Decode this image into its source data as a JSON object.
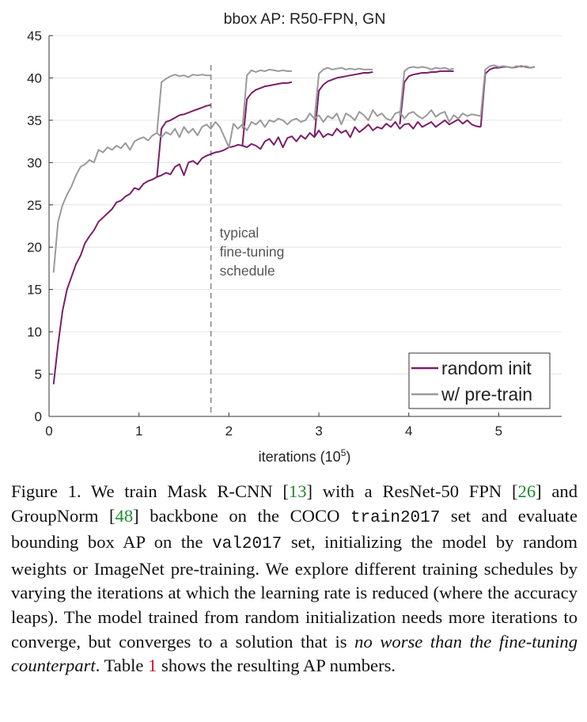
{
  "figure": {
    "caption": {
      "figure_label": "Figure 1.",
      "t1": " We train Mask R-CNN [",
      "ref13": "13",
      "t2": "] with a ResNet-50 FPN [",
      "ref26": "26",
      "t3": "] and GroupNorm [",
      "ref48": "48",
      "t4": "] backbone on the COCO ",
      "code_train": "train2017",
      "t5": " set and evaluate bounding box AP on the ",
      "code_val": "val2017",
      "t6": " set, initializing the model by random weights or ImageNet pre-training.  We explore different training schedules by varying the iterations at which the learning rate is reduced (where the accuracy leaps). The model trained from random initialization needs more iterations to converge, but converges to a solution that is ",
      "emph": "no worse than the fine-tuning counterpart",
      "t7": ". Table ",
      "table_ref": "1",
      "t8": " shows the resulting AP numbers."
    }
  },
  "chart_data": {
    "type": "line",
    "title": "bbox AP: R50-FPN, GN",
    "xlabel": "iterations (10",
    "xlabel_sup": "5",
    "xlabel_end": ")",
    "xlim": [
      0,
      5.7
    ],
    "ylim": [
      0,
      45
    ],
    "xticks": [
      0,
      1,
      2,
      3,
      4,
      5
    ],
    "yticks": [
      0,
      5,
      10,
      15,
      20,
      25,
      30,
      35,
      40,
      45
    ],
    "grid": true,
    "legend_position": "bottom-right",
    "colors": {
      "random_init": "#7b1f6a",
      "pretrain": "#9a9a9a",
      "annotation": "#8a8a8a"
    },
    "annotation": {
      "x": 1.8,
      "lines": [
        "typical",
        "fine-tuning",
        "schedule"
      ]
    },
    "series": [
      {
        "name": "random init",
        "key": "random_init",
        "segments": [
          {
            "x": [
              0.05,
              0.1,
              0.15,
              0.2,
              0.25,
              0.3,
              0.35,
              0.4,
              0.45,
              0.5,
              0.55,
              0.6,
              0.65,
              0.7,
              0.75,
              0.8,
              0.85,
              0.9,
              0.95,
              1.0,
              1.05,
              1.1,
              1.15,
              1.2,
              1.25,
              1.3,
              1.35,
              1.4,
              1.45,
              1.5,
              1.55,
              1.6,
              1.65,
              1.7,
              1.75,
              1.8,
              1.85,
              1.9,
              1.95,
              2.0,
              2.05,
              2.1,
              2.15,
              2.2,
              2.25,
              2.3,
              2.35,
              2.4,
              2.45,
              2.5,
              2.55,
              2.6,
              2.65,
              2.7,
              2.75,
              2.8,
              2.85,
              2.9,
              2.95,
              3.0,
              3.05,
              3.1,
              3.15,
              3.2,
              3.25,
              3.3,
              3.35,
              3.4,
              3.45,
              3.5,
              3.55,
              3.6,
              3.65,
              3.7,
              3.75,
              3.8,
              3.85,
              3.9,
              3.95,
              4.0,
              4.05,
              4.1,
              4.15,
              4.2,
              4.25,
              4.3,
              4.35,
              4.4,
              4.45,
              4.5,
              4.55,
              4.6,
              4.65,
              4.7,
              4.75,
              4.8
            ],
            "y": [
              3.8,
              8.5,
              12.5,
              15.0,
              16.5,
              18.0,
              19.0,
              20.5,
              21.3,
              22.0,
              23.0,
              23.5,
              24.0,
              24.5,
              25.3,
              25.5,
              26.0,
              26.3,
              27.0,
              26.8,
              27.5,
              27.8,
              28.0,
              28.3,
              28.5,
              28.8,
              28.6,
              29.5,
              29.8,
              28.5,
              30.0,
              30.2,
              29.8,
              30.5,
              30.8,
              31.0,
              31.2,
              31.3,
              31.5,
              31.8,
              31.9,
              32.1,
              32.0,
              31.8,
              32.2,
              32.0,
              31.6,
              32.5,
              32.8,
              32.1,
              33.0,
              31.8,
              32.9,
              33.1,
              32.5,
              33.2,
              32.8,
              33.5,
              33.0,
              33.8,
              33.0,
              33.4,
              33.2,
              34.0,
              33.5,
              33.8,
              33.0,
              34.2,
              33.6,
              34.0,
              34.5,
              33.8,
              34.2,
              34.0,
              34.6,
              34.2,
              34.8,
              34.0,
              34.5,
              34.6,
              34.0,
              34.8,
              34.2,
              34.5,
              34.8,
              34.2,
              34.6,
              35.0,
              34.5,
              34.8,
              35.1,
              34.6,
              35.0,
              34.5,
              34.3,
              34.2
            ]
          },
          {
            "x": [
              1.2,
              1.25,
              1.3,
              1.35,
              1.4,
              1.45,
              1.5,
              1.55,
              1.6,
              1.65,
              1.7,
              1.75,
              1.8
            ],
            "y": [
              28.3,
              34.0,
              34.8,
              35.0,
              35.3,
              35.6,
              35.7,
              35.9,
              36.1,
              36.3,
              36.5,
              36.7,
              36.8
            ]
          },
          {
            "x": [
              2.15,
              2.2,
              2.25,
              2.3,
              2.35,
              2.4,
              2.45,
              2.5,
              2.55,
              2.6,
              2.65,
              2.7
            ],
            "y": [
              32.0,
              37.5,
              38.2,
              38.6,
              38.8,
              39.0,
              39.1,
              39.2,
              39.3,
              39.4,
              39.4,
              39.5
            ]
          },
          {
            "x": [
              2.95,
              3.0,
              3.05,
              3.1,
              3.15,
              3.2,
              3.25,
              3.3,
              3.35,
              3.4,
              3.45,
              3.5,
              3.55,
              3.6
            ],
            "y": [
              33.0,
              38.5,
              39.2,
              39.6,
              39.8,
              40.0,
              40.1,
              40.2,
              40.3,
              40.4,
              40.5,
              40.6,
              40.6,
              40.7
            ]
          },
          {
            "x": [
              3.9,
              3.95,
              4.0,
              4.05,
              4.1,
              4.15,
              4.2,
              4.25,
              4.3,
              4.35,
              4.4,
              4.45,
              4.5
            ],
            "y": [
              34.5,
              39.5,
              40.2,
              40.4,
              40.5,
              40.6,
              40.6,
              40.7,
              40.7,
              40.8,
              40.8,
              40.8,
              40.8
            ]
          },
          {
            "x": [
              4.8,
              4.85,
              4.9,
              4.95,
              5.0,
              5.05,
              5.1,
              5.15,
              5.2,
              5.25,
              5.3,
              5.35,
              5.4
            ],
            "y": [
              34.2,
              40.5,
              41.0,
              41.2,
              41.2,
              41.3,
              41.3,
              41.2,
              41.3,
              41.4,
              41.3,
              41.2,
              41.3
            ]
          }
        ]
      },
      {
        "name": "w/ pre-train",
        "key": "pretrain",
        "segments": [
          {
            "x": [
              0.05,
              0.1,
              0.15,
              0.2,
              0.25,
              0.3,
              0.35,
              0.4,
              0.45,
              0.5,
              0.55,
              0.6,
              0.65,
              0.7,
              0.75,
              0.8,
              0.85,
              0.9,
              0.95,
              1.0,
              1.05,
              1.1,
              1.15,
              1.2,
              1.25,
              1.3,
              1.35,
              1.4,
              1.45,
              1.5,
              1.55,
              1.6,
              1.65,
              1.7,
              1.75,
              1.8,
              1.85,
              1.9,
              1.95,
              2.0,
              2.05,
              2.1,
              2.15,
              2.2,
              2.25,
              2.3,
              2.35,
              2.4,
              2.45,
              2.5,
              2.55,
              2.6,
              2.65,
              2.7,
              2.75,
              2.8,
              2.85,
              2.9,
              2.95,
              3.0,
              3.05,
              3.1,
              3.15,
              3.2,
              3.25,
              3.3,
              3.35,
              3.4,
              3.45,
              3.5,
              3.55,
              3.6,
              3.65,
              3.7,
              3.75,
              3.8,
              3.85,
              3.9,
              3.95,
              4.0,
              4.05,
              4.1,
              4.15,
              4.2,
              4.25,
              4.3,
              4.35,
              4.4,
              4.45,
              4.5,
              4.55,
              4.6,
              4.65,
              4.7,
              4.75,
              4.8
            ],
            "y": [
              17.0,
              23.0,
              25.0,
              26.2,
              27.2,
              28.5,
              29.5,
              29.8,
              30.3,
              30.0,
              31.5,
              31.2,
              31.8,
              31.5,
              32.0,
              31.7,
              32.3,
              31.5,
              32.5,
              32.8,
              33.0,
              32.6,
              33.2,
              33.5,
              33.0,
              33.6,
              33.3,
              34.0,
              33.0,
              34.2,
              33.5,
              34.0,
              33.2,
              34.2,
              34.5,
              34.0,
              34.8,
              34.2,
              33.0,
              31.8,
              34.6,
              34.0,
              34.5,
              33.8,
              34.8,
              34.5,
              35.0,
              34.2,
              35.0,
              34.8,
              35.2,
              35.0,
              34.5,
              35.0,
              35.2,
              34.8,
              35.0,
              35.8,
              35.2,
              35.6,
              34.8,
              35.5,
              35.2,
              35.8,
              34.5,
              35.8,
              35.5,
              35.0,
              36.0,
              35.6,
              35.0,
              36.2,
              35.5,
              35.8,
              35.2,
              35.0,
              35.8,
              36.0,
              35.2,
              35.8,
              36.0,
              35.5,
              35.2,
              35.6,
              36.2,
              35.4,
              35.8,
              36.0,
              34.8,
              35.6,
              35.2,
              35.8,
              35.5,
              35.7,
              35.6,
              35.5
            ]
          },
          {
            "x": [
              1.2,
              1.25,
              1.3,
              1.35,
              1.4,
              1.45,
              1.5,
              1.55,
              1.6,
              1.65,
              1.7,
              1.75,
              1.8
            ],
            "y": [
              33.5,
              39.5,
              39.9,
              40.2,
              40.4,
              40.2,
              40.3,
              40.1,
              40.4,
              40.3,
              40.4,
              40.3,
              40.3
            ]
          },
          {
            "x": [
              2.15,
              2.2,
              2.25,
              2.3,
              2.35,
              2.4,
              2.45,
              2.5,
              2.55,
              2.6,
              2.65,
              2.7
            ],
            "y": [
              34.0,
              40.3,
              40.9,
              40.7,
              40.9,
              40.8,
              41.0,
              40.9,
              40.8,
              40.9,
              40.8,
              40.8
            ]
          },
          {
            "x": [
              2.95,
              3.0,
              3.05,
              3.1,
              3.15,
              3.2,
              3.25,
              3.3,
              3.35,
              3.4,
              3.45,
              3.5,
              3.55,
              3.6
            ],
            "y": [
              35.0,
              40.5,
              41.0,
              41.2,
              41.0,
              41.1,
              41.2,
              41.0,
              41.1,
              41.0,
              41.1,
              41.0,
              41.0,
              41.0
            ]
          },
          {
            "x": [
              3.9,
              3.95,
              4.0,
              4.05,
              4.1,
              4.15,
              4.2,
              4.25,
              4.3,
              4.35,
              4.4,
              4.45,
              4.5
            ],
            "y": [
              35.5,
              40.8,
              41.2,
              41.3,
              41.2,
              41.3,
              41.2,
              41.0,
              41.2,
              41.1,
              41.2,
              41.0,
              41.1
            ]
          },
          {
            "x": [
              4.8,
              4.85,
              4.9,
              4.95,
              5.0,
              5.05,
              5.1,
              5.15,
              5.2,
              5.25,
              5.3,
              5.35,
              5.4
            ],
            "y": [
              35.5,
              41.0,
              41.4,
              41.5,
              41.3,
              41.4,
              41.3,
              41.2,
              41.4,
              41.3,
              41.4,
              41.2,
              41.3
            ]
          }
        ]
      }
    ]
  }
}
